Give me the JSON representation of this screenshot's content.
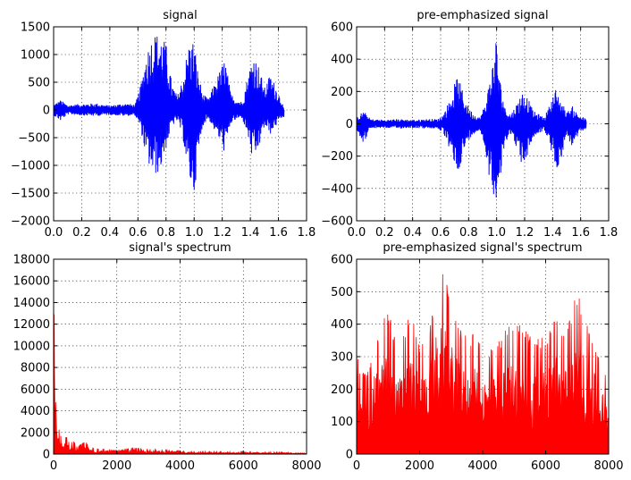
{
  "chart_data": [
    {
      "id": "signal",
      "type": "line",
      "title": "signal",
      "xlabel": "",
      "ylabel": "",
      "xlim": [
        0.0,
        1.8
      ],
      "ylim": [
        -2000,
        1500
      ],
      "xticks": [
        0.0,
        0.2,
        0.4,
        0.6,
        0.8,
        1.0,
        1.2,
        1.4,
        1.6,
        1.8
      ],
      "yticks": [
        -2000,
        -1500,
        -1000,
        -500,
        0,
        500,
        1000,
        1500
      ],
      "xtick_labels": [
        "0.0",
        "0.2",
        "0.4",
        "0.6",
        "0.8",
        "1.0",
        "1.2",
        "1.4",
        "1.6",
        "1.8"
      ],
      "ytick_labels": [
        "−2000",
        "−1500",
        "−1000",
        "−500",
        "0",
        "500",
        "1000",
        "1500"
      ],
      "grid": true,
      "color": "#0000ff",
      "envelope": {
        "x": [
          0.0,
          0.05,
          0.1,
          0.2,
          0.3,
          0.4,
          0.5,
          0.58,
          0.62,
          0.66,
          0.7,
          0.72,
          0.76,
          0.8,
          0.84,
          0.88,
          0.92,
          0.96,
          1.0,
          1.02,
          1.06,
          1.1,
          1.14,
          1.18,
          1.22,
          1.26,
          1.3,
          1.34,
          1.38,
          1.42,
          1.46,
          1.5,
          1.54,
          1.58,
          1.62,
          1.64
        ],
        "upper": [
          100,
          180,
          90,
          110,
          120,
          80,
          120,
          100,
          450,
          1050,
          1350,
          1400,
          1380,
          1200,
          500,
          250,
          600,
          1200,
          1300,
          800,
          300,
          200,
          450,
          700,
          950,
          300,
          200,
          150,
          600,
          1050,
          800,
          400,
          650,
          450,
          200,
          0
        ],
        "lower": [
          -100,
          -200,
          -80,
          -100,
          -110,
          -90,
          -110,
          -100,
          -350,
          -900,
          -1150,
          -1200,
          -1100,
          -700,
          -300,
          -200,
          -500,
          -1250,
          -1550,
          -1050,
          -300,
          -150,
          -350,
          -550,
          -800,
          -250,
          -180,
          -150,
          -450,
          -1000,
          -700,
          -300,
          -450,
          -300,
          -150,
          -150
        ]
      }
    },
    {
      "id": "pre-emphasized",
      "type": "line",
      "title": "pre-emphasized signal",
      "xlabel": "",
      "ylabel": "",
      "xlim": [
        0.0,
        1.8
      ],
      "ylim": [
        -600,
        600
      ],
      "xticks": [
        0.0,
        0.2,
        0.4,
        0.6,
        0.8,
        1.0,
        1.2,
        1.4,
        1.6,
        1.8
      ],
      "yticks": [
        -600,
        -400,
        -200,
        0,
        200,
        400,
        600
      ],
      "xtick_labels": [
        "0.0",
        "0.2",
        "0.4",
        "0.6",
        "0.8",
        "1.0",
        "1.2",
        "1.4",
        "1.6",
        "1.8"
      ],
      "ytick_labels": [
        "−600",
        "−400",
        "−200",
        "0",
        "200",
        "400",
        "600"
      ],
      "grid": true,
      "color": "#0000ff",
      "envelope": {
        "x": [
          0.0,
          0.05,
          0.1,
          0.2,
          0.3,
          0.4,
          0.5,
          0.58,
          0.62,
          0.66,
          0.7,
          0.72,
          0.76,
          0.8,
          0.84,
          0.88,
          0.92,
          0.96,
          1.0,
          1.02,
          1.06,
          1.1,
          1.14,
          1.18,
          1.22,
          1.26,
          1.3,
          1.34,
          1.38,
          1.42,
          1.46,
          1.5,
          1.54,
          1.58,
          1.62,
          1.64
        ],
        "upper": [
          40,
          80,
          30,
          25,
          30,
          25,
          30,
          30,
          60,
          140,
          250,
          300,
          200,
          100,
          60,
          40,
          130,
          330,
          560,
          300,
          100,
          60,
          120,
          200,
          170,
          80,
          60,
          40,
          120,
          220,
          150,
          70,
          110,
          60,
          40,
          30
        ],
        "lower": [
          -40,
          -120,
          -30,
          -25,
          -30,
          -25,
          -30,
          -30,
          -60,
          -150,
          -260,
          -310,
          -200,
          -100,
          -60,
          -40,
          -160,
          -420,
          -460,
          -420,
          -120,
          -60,
          -140,
          -270,
          -200,
          -90,
          -60,
          -40,
          -130,
          -300,
          -220,
          -70,
          -150,
          -80,
          -40,
          -30
        ]
      }
    },
    {
      "id": "signal-spectrum",
      "type": "area",
      "title": "signal's spectrum",
      "xlabel": "",
      "ylabel": "",
      "xlim": [
        0,
        8000
      ],
      "ylim": [
        0,
        18000
      ],
      "xticks": [
        0,
        2000,
        4000,
        6000,
        8000
      ],
      "yticks": [
        0,
        2000,
        4000,
        6000,
        8000,
        10000,
        12000,
        14000,
        16000,
        18000
      ],
      "xtick_labels": [
        "0",
        "2000",
        "4000",
        "6000",
        "8000"
      ],
      "ytick_labels": [
        "0",
        "2000",
        "4000",
        "6000",
        "8000",
        "10000",
        "12000",
        "14000",
        "16000",
        "18000"
      ],
      "grid": true,
      "color": "#ff0000",
      "envelope": {
        "x": [
          0,
          30,
          60,
          100,
          150,
          200,
          300,
          400,
          500,
          600,
          800,
          1000,
          1200,
          1500,
          2000,
          2500,
          3000,
          3500,
          4000,
          5000,
          6000,
          7000,
          8000
        ],
        "upper": [
          16000,
          12000,
          8000,
          3000,
          2600,
          2000,
          1200,
          1700,
          1000,
          1300,
          800,
          1200,
          600,
          500,
          400,
          600,
          500,
          400,
          300,
          250,
          200,
          200,
          150
        ]
      }
    },
    {
      "id": "pre-emphasized-spectrum",
      "type": "area",
      "title": "pre-emphasized signal's spectrum",
      "xlabel": "",
      "ylabel": "",
      "xlim": [
        0,
        8000
      ],
      "ylim": [
        0,
        600
      ],
      "xticks": [
        0,
        2000,
        4000,
        6000,
        8000
      ],
      "yticks": [
        0,
        100,
        200,
        300,
        400,
        500,
        600
      ],
      "xtick_labels": [
        "0",
        "2000",
        "4000",
        "6000",
        "8000"
      ],
      "ytick_labels": [
        "0",
        "100",
        "200",
        "300",
        "400",
        "500",
        "600"
      ],
      "grid": true,
      "color": "#ff0000",
      "envelope": {
        "x": [
          0,
          50,
          300,
          600,
          1000,
          1300,
          1700,
          2000,
          2300,
          2600,
          2900,
          3200,
          3500,
          3800,
          4200,
          4500,
          5000,
          5500,
          6000,
          6300,
          6600,
          7000,
          7500,
          8000
        ],
        "upper": [
          510,
          250,
          250,
          360,
          450,
          320,
          440,
          340,
          390,
          575,
          530,
          410,
          360,
          380,
          320,
          350,
          420,
          370,
          360,
          450,
          370,
          500,
          370,
          220
        ]
      }
    }
  ]
}
